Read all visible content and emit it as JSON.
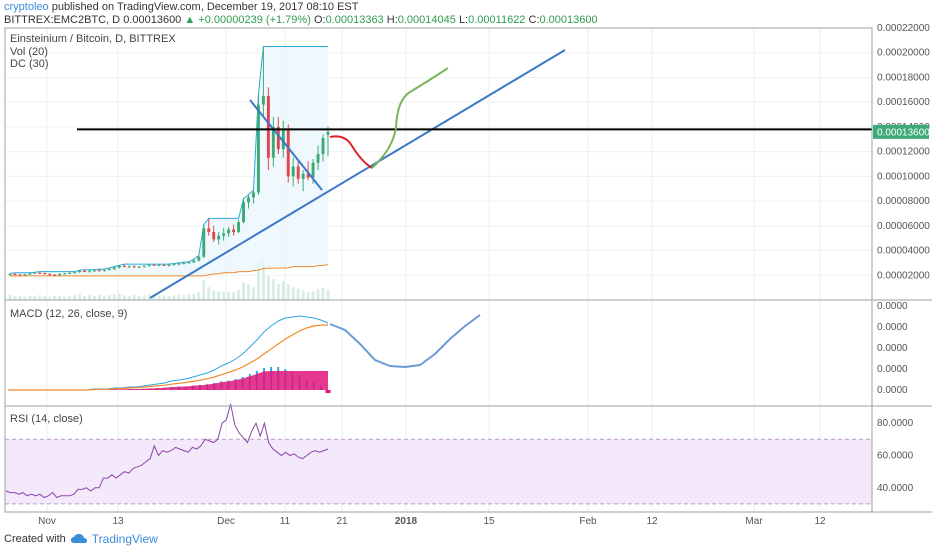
{
  "header": {
    "author": "cryptoleo",
    "published": "published on TradingView.com, December 19, 2017 08:10 EST",
    "symbol": "BITTREX:EMC2BTC, D",
    "last": "0.00013600",
    "change": "+0.00000239 (+1.79%)",
    "ohlc_open_label": "O:",
    "ohlc_open": "0.00013363",
    "ohlc_high_label": "H:",
    "ohlc_high": "0.00014045",
    "ohlc_low_label": "L:",
    "ohlc_low": "0.00011622",
    "ohlc_close_label": "C:",
    "ohlc_close": "0.00013600"
  },
  "legend": {
    "title": "Einsteinium / Bitcoin, D, BITTREX",
    "vol": "Vol (20)",
    "dc": "DC (30)",
    "macd": "MACD (12, 26, close, 9)",
    "rsi": "RSI (14, close)"
  },
  "price_badge": "0.00013600",
  "footer": {
    "created": "Created with",
    "brand": "TradingView"
  },
  "colors": {
    "up": "#3daa77",
    "down": "#e0464c",
    "trend": "#3c78c8",
    "hline": "#000000",
    "green_proj": "#77b55a",
    "red_proj": "#dd2222",
    "macd_line": "#ef8a2a",
    "macd_hist": "#2ea6e0",
    "macd_neg": "#e0157a",
    "rsi": "#8a45a8",
    "rsi_band": "#f4e8fb",
    "dc": "#29a8d8"
  },
  "chart_data": [
    {
      "type": "candlestick",
      "title": "Einsteinium / Bitcoin, D, BITTREX",
      "ylim": [
        0,
        0.00022
      ],
      "y_ticks": [
        "0.00022000",
        "0.00020000",
        "0.00018000",
        "0.00016000",
        "0.00014000",
        "0.00012000",
        "0.00010000",
        "0.00008000",
        "0.00006000",
        "0.00004000",
        "0.00002000"
      ],
      "x_ticks": [
        "Nov",
        "13",
        "Dec",
        "11",
        "21",
        "2018",
        "15",
        "Feb",
        "12",
        "Mar",
        "12"
      ],
      "last_price": 0.000136,
      "horizontal_line": 0.000138,
      "candles": [
        [
          2.05e-05,
          2.15e-05,
          1.95e-05,
          2.1e-05
        ],
        [
          2.1e-05,
          2.2e-05,
          2e-05,
          2.05e-05
        ],
        [
          2.05e-05,
          2.1e-05,
          1.95e-05,
          2e-05
        ],
        [
          2e-05,
          2.12e-05,
          1.95e-05,
          2.08e-05
        ],
        [
          2.08e-05,
          2.2e-05,
          2.02e-05,
          2.15e-05
        ],
        [
          2.15e-05,
          2.25e-05,
          2.1e-05,
          2.2e-05
        ],
        [
          2.2e-05,
          2.3e-05,
          2.1e-05,
          2.18e-05
        ],
        [
          2.18e-05,
          2.22e-05,
          2.05e-05,
          2.1e-05
        ],
        [
          2.1e-05,
          2.15e-05,
          1.98e-05,
          2.05e-05
        ],
        [
          2.05e-05,
          2.1e-05,
          1.95e-05,
          2e-05
        ],
        [
          2e-05,
          2.15e-05,
          1.95e-05,
          2.12e-05
        ],
        [
          2.12e-05,
          2.2e-05,
          2.05e-05,
          2.15e-05
        ],
        [
          2.15e-05,
          2.25e-05,
          2.1e-05,
          2.2e-05
        ],
        [
          2.2e-05,
          2.3e-05,
          2.12e-05,
          2.25e-05
        ],
        [
          2.25e-05,
          2.4e-05,
          2.2e-05,
          2.35e-05
        ],
        [
          2.35e-05,
          2.45e-05,
          2.25e-05,
          2.3e-05
        ],
        [
          2.3e-05,
          2.4e-05,
          2.2e-05,
          2.38e-05
        ],
        [
          2.38e-05,
          2.45e-05,
          2.28e-05,
          2.4e-05
        ],
        [
          2.4e-05,
          2.5e-05,
          2.32e-05,
          2.36e-05
        ],
        [
          2.36e-05,
          2.48e-05,
          2.3e-05,
          2.44e-05
        ],
        [
          2.44e-05,
          2.6e-05,
          2.38e-05,
          2.5e-05
        ],
        [
          2.5e-05,
          2.7e-05,
          2.42e-05,
          2.62e-05
        ],
        [
          2.62e-05,
          2.8e-05,
          2.55e-05,
          2.75e-05
        ],
        [
          2.75e-05,
          2.9e-05,
          2.65e-05,
          2.7e-05
        ],
        [
          2.7e-05,
          2.8e-05,
          2.6e-05,
          2.72e-05
        ],
        [
          2.72e-05,
          2.8e-05,
          2.62e-05,
          2.65e-05
        ],
        [
          2.65e-05,
          2.75e-05,
          2.58e-05,
          2.7e-05
        ],
        [
          2.7e-05,
          2.8e-05,
          2.6e-05,
          2.78e-05
        ],
        [
          2.78e-05,
          2.9e-05,
          2.7e-05,
          2.85e-05
        ],
        [
          2.85e-05,
          2.9e-05,
          2.75e-05,
          2.8e-05
        ],
        [
          2.8e-05,
          2.88e-05,
          2.72e-05,
          2.84e-05
        ],
        [
          2.84e-05,
          2.9e-05,
          2.75e-05,
          2.79e-05
        ],
        [
          2.79e-05,
          2.88e-05,
          2.7e-05,
          2.85e-05
        ],
        [
          2.85e-05,
          2.95e-05,
          2.78e-05,
          2.9e-05
        ],
        [
          2.9e-05,
          3e-05,
          2.8e-05,
          2.95e-05
        ],
        [
          2.95e-05,
          3.05e-05,
          2.85e-05,
          3e-05
        ],
        [
          3e-05,
          3.1e-05,
          2.92e-05,
          3.05e-05
        ],
        [
          3.05e-05,
          3.3e-05,
          2.98e-05,
          3.2e-05
        ],
        [
          3.2e-05,
          3.6e-05,
          3.1e-05,
          3.5e-05
        ],
        [
          3.5e-05,
          6.1e-05,
          3.4e-05,
          5.8e-05
        ],
        [
          5.8e-05,
          6.6e-05,
          5.2e-05,
          5.5e-05
        ],
        [
          5.5e-05,
          6e-05,
          4.7e-05,
          4.9e-05
        ],
        [
          4.9e-05,
          5.5e-05,
          4.5e-05,
          5.2e-05
        ],
        [
          5.2e-05,
          5.8e-05,
          4.8e-05,
          5.4e-05
        ],
        [
          5.4e-05,
          5.9e-05,
          5.1e-05,
          5.7e-05
        ],
        [
          5.7e-05,
          6.1e-05,
          5.2e-05,
          5.5e-05
        ],
        [
          5.5e-05,
          6.5e-05,
          5.4e-05,
          6.3e-05
        ],
        [
          6.3e-05,
          8.2e-05,
          6.2e-05,
          7.9e-05
        ],
        [
          7.9e-05,
          8.5e-05,
          7.4e-05,
          8.3e-05
        ],
        [
          8.3e-05,
          8.9e-05,
          7.8e-05,
          8.7e-05
        ],
        [
          8.7e-05,
          0.000166,
          8.5e-05,
          0.000158
        ],
        [
          0.000158,
          0.000205,
          0.000148,
          0.000165
        ],
        [
          0.000165,
          0.000172,
          0.000105,
          0.000115
        ],
        [
          0.000115,
          0.000148,
          0.000108,
          0.00014
        ],
        [
          0.00014,
          0.000148,
          0.000118,
          0.000122
        ],
        [
          0.000122,
          0.000145,
          0.000115,
          0.000138
        ],
        [
          0.000138,
          0.000142,
          9.5e-05,
          0.0001
        ],
        [
          0.0001,
          0.000115,
          9.2e-05,
          0.000108
        ],
        [
          0.000108,
          0.000112,
          9.4e-05,
          9.8e-05
        ],
        [
          9.8e-05,
          0.000105,
          8.8e-05,
          0.000102
        ],
        [
          0.000102,
          0.000112,
          9.7e-05,
          9.9e-05
        ],
        [
          9.9e-05,
          0.000114,
          9.4e-05,
          0.000111
        ],
        [
          0.000111,
          0.000125,
          0.000105,
          0.000118
        ],
        [
          0.000118,
          0.000134,
          0.000112,
          0.000131
        ],
        [
          0.0001336,
          0.00014045,
          0.00011622,
          0.000136
        ]
      ],
      "volume": [
        0.6,
        0.5,
        0.5,
        0.4,
        0.5,
        0.5,
        0.6,
        0.5,
        0.4,
        0.5,
        0.5,
        0.4,
        0.5,
        0.6,
        0.7,
        0.5,
        0.6,
        0.5,
        0.6,
        0.5,
        0.6,
        0.7,
        0.8,
        0.6,
        0.5,
        0.6,
        0.5,
        0.6,
        0.7,
        0.6,
        0.5,
        0.6,
        0.5,
        0.6,
        0.7,
        0.6,
        0.7,
        0.8,
        1.0,
        2.5,
        1.6,
        1.2,
        1.1,
        1.0,
        1.0,
        1.0,
        1.3,
        2.2,
        2.0,
        1.6,
        4.6,
        5.0,
        3.0,
        2.6,
        2.0,
        2.4,
        2.0,
        1.6,
        1.4,
        1.2,
        1.0,
        1.1,
        1.3,
        1.5,
        1.3
      ]
    },
    {
      "type": "line",
      "title": "MACD (12, 26, close, 9)",
      "y_ticks": [
        "0.0000",
        "0.0000",
        "0.0000",
        "0.0000",
        "0.0000"
      ],
      "macd": [
        0,
        0,
        0,
        0,
        0,
        0,
        0,
        0,
        0,
        0,
        0,
        0,
        0.1,
        0.1,
        0.1,
        0.2,
        0.2,
        0.3,
        0.3,
        0.4,
        0.5,
        0.6,
        0.7,
        0.9,
        1.0,
        1.1,
        1.3,
        1.5,
        1.7,
        2.0,
        2.4,
        2.7,
        3.1,
        3.6,
        4.3,
        5.0,
        5.8,
        6.4,
        6.9,
        7.2,
        7.3,
        7.4,
        7.3,
        7.2,
        7.0,
        6.7
      ],
      "signal": [
        0,
        0,
        0,
        0,
        0,
        0,
        0,
        0,
        0,
        0,
        0,
        0,
        0.05,
        0.07,
        0.08,
        0.12,
        0.15,
        0.2,
        0.23,
        0.28,
        0.35,
        0.41,
        0.48,
        0.58,
        0.67,
        0.75,
        0.86,
        0.98,
        1.12,
        1.3,
        1.52,
        1.76,
        2.0,
        2.3,
        2.7,
        3.1,
        3.6,
        4.1,
        4.6,
        5.1,
        5.5,
        5.9,
        6.2,
        6.4,
        6.5,
        6.5
      ],
      "histogram": [
        0,
        0,
        0,
        0,
        0,
        0,
        0,
        0,
        0,
        0,
        0,
        0,
        0.05,
        0.03,
        0.02,
        0.08,
        0.05,
        0.1,
        0.07,
        0.12,
        0.15,
        0.19,
        0.22,
        0.32,
        0.33,
        0.35,
        0.44,
        0.52,
        0.58,
        0.7,
        0.88,
        0.94,
        1.1,
        1.3,
        1.6,
        1.9,
        2.2,
        2.3,
        2.3,
        2.1,
        1.8,
        1.5,
        1.1,
        0.8,
        0.5,
        -0.3
      ],
      "projection": [
        [
          0,
          6.6
        ],
        [
          1,
          6.0
        ],
        [
          2,
          4.6
        ],
        [
          3,
          3.0
        ],
        [
          4,
          2.4
        ],
        [
          5,
          2.3
        ],
        [
          6,
          2.5
        ],
        [
          7,
          3.6
        ],
        [
          8,
          5.1
        ],
        [
          9,
          6.4
        ],
        [
          10,
          7.5
        ]
      ]
    },
    {
      "type": "line",
      "title": "RSI (14, close)",
      "ylim": [
        25,
        90
      ],
      "y_ticks": [
        "80.0000",
        "60.0000",
        "40.0000"
      ],
      "band": [
        30,
        70
      ],
      "values": [
        38,
        37,
        37,
        36,
        37,
        35,
        36,
        35,
        36,
        34,
        35,
        37,
        34,
        35,
        35,
        35,
        36,
        39,
        39,
        40,
        38,
        40,
        40,
        46,
        46,
        48,
        46,
        48,
        50,
        49,
        52,
        53,
        54,
        56,
        58,
        66,
        60,
        63,
        62,
        63,
        65,
        64,
        63,
        62,
        65,
        64,
        66,
        70,
        69,
        68,
        70,
        80,
        82,
        92,
        79,
        74,
        71,
        68,
        75,
        80,
        72,
        80,
        68,
        64,
        62,
        60,
        62,
        60,
        61,
        59,
        58,
        60,
        62,
        63,
        62,
        63,
        64
      ]
    }
  ]
}
